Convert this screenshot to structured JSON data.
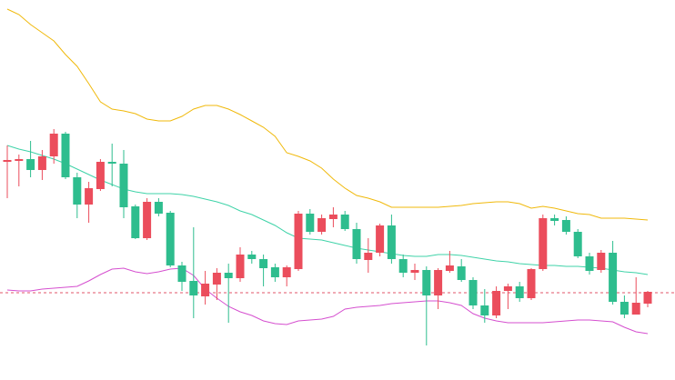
{
  "chart_data": {
    "type": "candlestick",
    "ylim": [
      0,
      418
    ],
    "up_color": "#eb4d5c",
    "down_color": "#2ebd8e",
    "open": [
      240,
      241,
      243,
      231,
      246,
      271,
      223,
      193,
      210,
      240,
      238,
      191,
      156,
      196,
      184,
      126,
      109,
      92,
      105,
      118,
      112,
      138,
      133,
      124,
      113,
      122,
      183,
      163,
      177,
      182,
      166,
      132,
      140,
      170,
      133,
      118,
      121,
      93,
      120,
      125,
      110,
      82,
      71,
      98,
      103,
      90,
      122,
      178,
      176,
      163,
      136,
      121,
      140,
      86,
      72,
      84
    ],
    "high": [
      258,
      248,
      263,
      253,
      276,
      273,
      228,
      218,
      243,
      260,
      253,
      193,
      200,
      200,
      186,
      130,
      168,
      120,
      123,
      128,
      146,
      142,
      138,
      128,
      126,
      186,
      188,
      182,
      190,
      186,
      173,
      156,
      172,
      182,
      138,
      128,
      125,
      123,
      142,
      133,
      113,
      100,
      103,
      106,
      108,
      123,
      182,
      182,
      180,
      166,
      140,
      143,
      153,
      93,
      113,
      98
    ],
    "low": [
      200,
      213,
      223,
      220,
      238,
      221,
      178,
      173,
      208,
      213,
      178,
      155,
      154,
      180,
      124,
      98,
      68,
      83,
      88,
      63,
      108,
      128,
      103,
      108,
      103,
      120,
      160,
      160,
      168,
      164,
      128,
      118,
      136,
      128,
      113,
      110,
      38,
      78,
      118,
      108,
      78,
      63,
      68,
      78,
      86,
      88,
      120,
      170,
      160,
      134,
      116,
      118,
      83,
      68,
      72,
      80
    ],
    "close": [
      242,
      243,
      231,
      246,
      271,
      223,
      193,
      211,
      240,
      238,
      190,
      156,
      196,
      183,
      126,
      108,
      93,
      106,
      118,
      112,
      138,
      133,
      123,
      113,
      124,
      183,
      163,
      178,
      182,
      166,
      133,
      140,
      170,
      133,
      118,
      121,
      93,
      121,
      126,
      110,
      82,
      71,
      98,
      103,
      90,
      122,
      178,
      175,
      163,
      136,
      120,
      140,
      86,
      72,
      85,
      97
    ],
    "bands": [
      {
        "color": "#f0b90b",
        "values": [
          408,
          402,
          391,
          382,
          373,
          358,
          345,
          326,
          306,
          298,
          296,
          293,
          287,
          285,
          285,
          290,
          298,
          302,
          302,
          298,
          292,
          285,
          278,
          268,
          250,
          246,
          241,
          233,
          221,
          211,
          203,
          200,
          196,
          190,
          190,
          190,
          190,
          190,
          191,
          192,
          194,
          195,
          196,
          196,
          194,
          189,
          191,
          189,
          186,
          183,
          182,
          178,
          178,
          178,
          177,
          176
        ]
      },
      {
        "color": "#3fd3a8",
        "values": [
          258,
          254,
          251,
          247,
          243,
          238,
          232,
          226,
          220,
          215,
          210,
          207,
          205,
          205,
          205,
          204,
          202,
          199,
          196,
          192,
          186,
          182,
          176,
          170,
          162,
          156,
          155,
          154,
          151,
          148,
          145,
          143,
          141,
          139,
          137,
          136,
          136,
          138,
          138,
          137,
          135,
          133,
          131,
          130,
          128,
          127,
          126,
          126,
          125,
          125,
          124,
          123,
          121,
          119,
          118,
          116
        ]
      },
      {
        "color": "#d54fcf",
        "values": [
          99,
          98,
          98,
          100,
          101,
          102,
          103,
          109,
          116,
          122,
          123,
          119,
          117,
          119,
          122,
          123,
          115,
          100,
          90,
          81,
          75,
          71,
          65,
          62,
          61,
          65,
          66,
          67,
          70,
          78,
          80,
          81,
          82,
          84,
          85,
          86,
          87,
          87,
          85,
          82,
          73,
          68,
          65,
          63,
          63,
          63,
          63,
          64,
          65,
          66,
          66,
          65,
          64,
          58,
          53,
          51
        ]
      }
    ],
    "price_line": {
      "value": 96,
      "color": "#e0566a"
    }
  }
}
